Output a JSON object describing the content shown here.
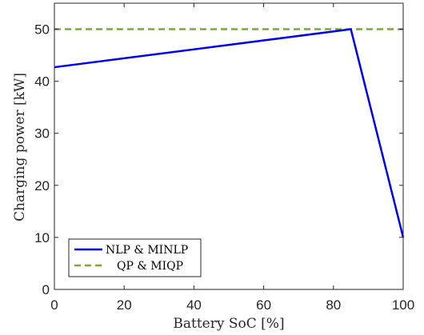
{
  "chart_data": {
    "type": "line",
    "xlabel": "Battery SoC [%]",
    "ylabel": "Charging power [kW]",
    "xlim": [
      0,
      100
    ],
    "ylim": [
      0,
      55
    ],
    "xticks": [
      0,
      20,
      40,
      60,
      80,
      100
    ],
    "yticks": [
      0,
      10,
      20,
      30,
      40,
      50
    ],
    "grid": false,
    "legend_position": "bottom-left",
    "series": [
      {
        "name": "NLP & MINLP",
        "color": "#0000ee",
        "style": "solid",
        "x": [
          0,
          85,
          100
        ],
        "y": [
          42.7,
          50,
          10
        ]
      },
      {
        "name": "QP & MIQP",
        "color": "#77ac30",
        "style": "dashed",
        "x": [
          0,
          100
        ],
        "y": [
          50,
          50
        ]
      }
    ]
  }
}
